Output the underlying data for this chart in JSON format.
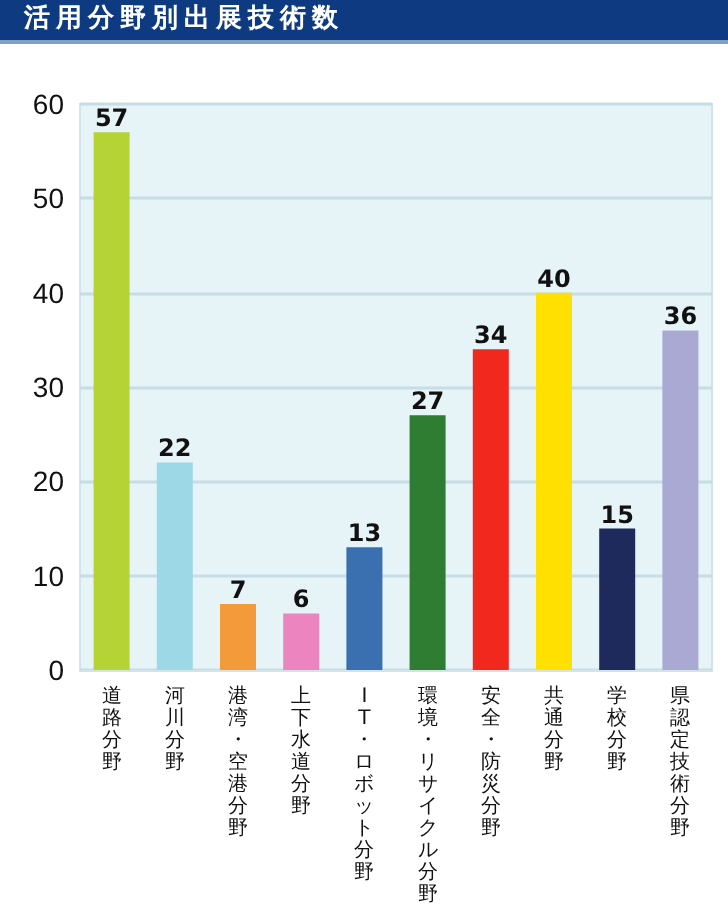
{
  "chart_data": {
    "type": "bar",
    "title": "活用分野別出展技術数",
    "categories": [
      "道路分野",
      "河川分野",
      "港湾・空港分野",
      "上下水道分野",
      "IT・ロボット分野",
      "環境・リサイクル分野",
      "安全・防災分野",
      "共通分野",
      "学校分野",
      "県認定技術分野"
    ],
    "values": [
      57,
      22,
      7,
      6,
      13,
      27,
      34,
      40,
      15,
      36
    ],
    "colors": [
      "#b5d334",
      "#9cd8e6",
      "#f39a3a",
      "#ec84c0",
      "#3a6fb0",
      "#2e7d32",
      "#f0281e",
      "#ffe000",
      "#1e2a5c",
      "#a9a9d4"
    ],
    "ylim": [
      0,
      60
    ],
    "yticks": [
      0,
      10,
      20,
      30,
      40,
      50,
      60
    ],
    "grid": "y",
    "data_labels": true
  }
}
